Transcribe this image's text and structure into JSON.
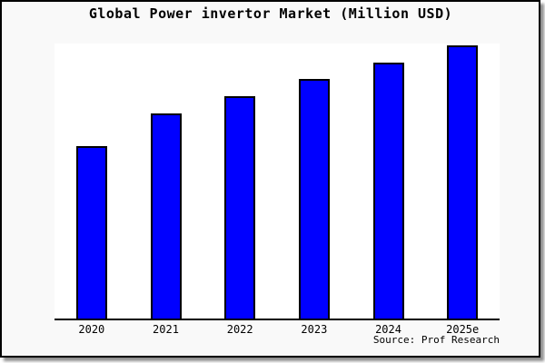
{
  "window": {
    "background_color": "#f9f9f9",
    "frame_border_color": "#000000",
    "shadow_color": "#8f8f8f",
    "plot_background_color": "#ffffff"
  },
  "chart_data": {
    "type": "bar",
    "title": "Global Power invertor Market (Million USD)",
    "categories": [
      "2020",
      "2021",
      "2022",
      "2023",
      "2024",
      "2025e"
    ],
    "values": [
      63,
      75,
      81.5,
      87.8,
      93.8,
      100
    ],
    "value_scale_note": "no numeric y-axis shown in chart; values are relative bar heights indexed to 2025e = 100",
    "xlabel": "",
    "ylabel": "",
    "ylim": [
      0,
      100.7
    ],
    "grid": false,
    "legend": false,
    "y_axis_visible": false,
    "bar_color": "#0000ff",
    "bar_border_color": "#000000",
    "source_caption": "Source: Prof Research"
  }
}
